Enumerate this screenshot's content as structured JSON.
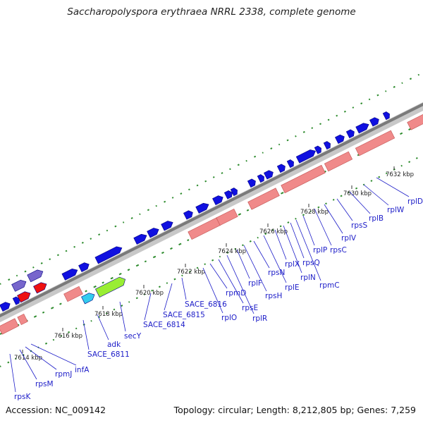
{
  "title": "Saccharopolyspora erythraea NRRL 2338, complete genome",
  "footer": {
    "accession": "Accession: NC_009142",
    "summary": "Topology: circular; Length: 8,212,805 bp; Genes: 7,259"
  },
  "colors": {
    "forward_cds": "#1010e0",
    "reverse_feature": "#f08a8a",
    "highlight_green": "#99ee33",
    "highlight_cyan": "#33ccee",
    "highlight_red": "#ee1111",
    "highlight_purple": "#7766cc",
    "label": "#1c1cc8",
    "gc_skew": "#2b8a2b"
  },
  "kbp_ticks": [
    "7614 kbp",
    "7616 kbp",
    "7618 kbp",
    "7620 kbp",
    "7622 kbp",
    "7624 kbp",
    "7626 kbp",
    "7628 kbp",
    "7630 kbp",
    "7632 kbp"
  ],
  "genes": [
    "rpsK",
    "rpsM",
    "rpmJ",
    "infA",
    "SACE_6811",
    "adk",
    "secY",
    "SACE_6814",
    "SACE_6815",
    "SACE_6816",
    "rplO",
    "rpmD",
    "rpsE",
    "rplR",
    "rplF",
    "rpsH",
    "rpsN",
    "rplE",
    "rplX",
    "rplN",
    "rpsQ",
    "rpmC",
    "rplP",
    "rpsC",
    "rplV",
    "rpsS",
    "rplB",
    "rplW",
    "rplD"
  ]
}
